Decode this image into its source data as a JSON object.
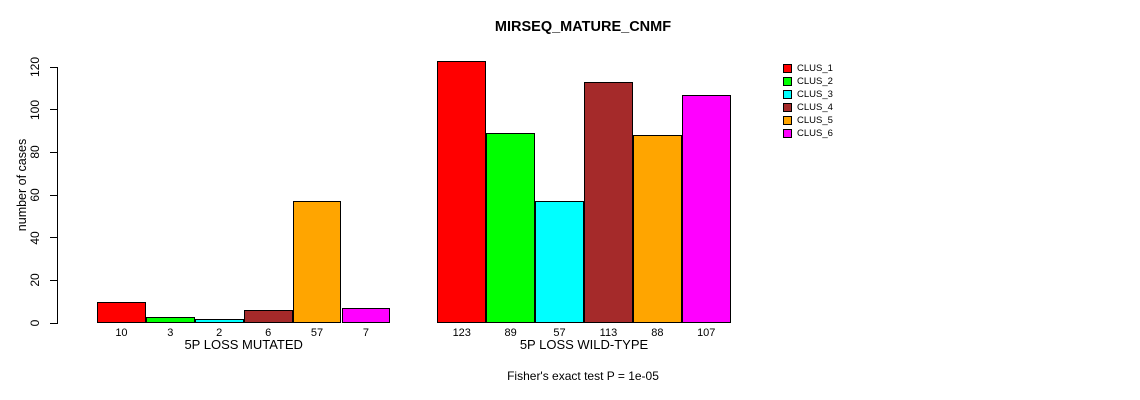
{
  "title": "MIRSEQ_MATURE_CNMF",
  "footer": "Fisher's exact test P = 1e-05",
  "chart_data": {
    "type": "bar",
    "title": "MIRSEQ_MATURE_CNMF",
    "xlabel": "",
    "ylabel": "number of cases",
    "ylim": [
      0,
      120
    ],
    "y_ticks": [
      0,
      20,
      40,
      60,
      80,
      100,
      120
    ],
    "grid": false,
    "legend_position": "right",
    "categories": [
      "5P LOSS MUTATED",
      "5P LOSS WILD-TYPE"
    ],
    "series": [
      {
        "name": "CLUS_1",
        "color": "#FF0000",
        "values": [
          10,
          123
        ]
      },
      {
        "name": "CLUS_2",
        "color": "#00FF00",
        "values": [
          3,
          89
        ]
      },
      {
        "name": "CLUS_3",
        "color": "#00FFFF",
        "values": [
          2,
          57
        ]
      },
      {
        "name": "CLUS_4",
        "color": "#A52A2A",
        "values": [
          6,
          113
        ]
      },
      {
        "name": "CLUS_5",
        "color": "#FFA500",
        "values": [
          57,
          88
        ]
      },
      {
        "name": "CLUS_6",
        "color": "#FF00FF",
        "values": [
          7,
          107
        ]
      }
    ],
    "bar_value_labels": [
      [
        10,
        3,
        2,
        6,
        57,
        7
      ],
      [
        123,
        89,
        57,
        113,
        88,
        107
      ]
    ],
    "annotation": "Fisher's exact test P = 1e-05"
  }
}
